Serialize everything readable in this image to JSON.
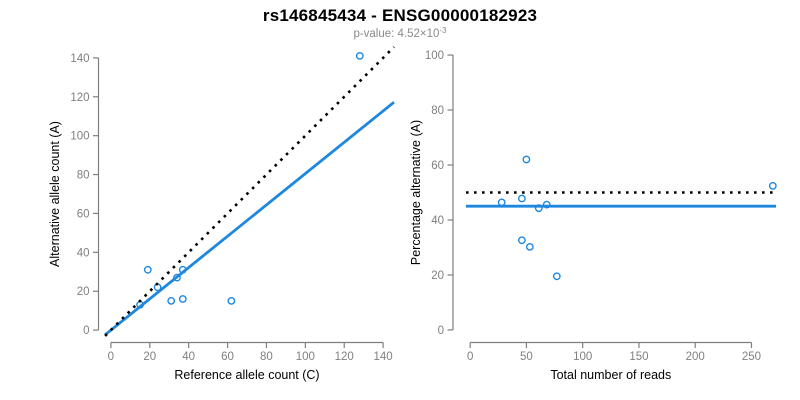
{
  "header": {
    "title": "rs146845434 - ENSG00000182923",
    "pvalue_text": "p-value: 4.52×10",
    "pvalue_exponent": "-3"
  },
  "colors": {
    "accent_blue": "#1E87E0",
    "identity_black": "#000000",
    "axis_gray": "#7F7F7F",
    "tick_label_gray": "#7F7F7F",
    "axis_title_black": "#000000"
  },
  "chart_data": [
    {
      "type": "scatter",
      "title": "",
      "xlabel": "Reference allele count (C)",
      "ylabel": "Alternative allele count (A)",
      "xlim": [
        0,
        140
      ],
      "ylim": [
        0,
        140
      ],
      "xticks": [
        0,
        20,
        40,
        60,
        80,
        100,
        120,
        140
      ],
      "yticks": [
        0,
        20,
        40,
        60,
        80,
        100,
        120,
        140
      ],
      "grid": false,
      "points": [
        [
          19,
          31
        ],
        [
          15,
          13
        ],
        [
          24,
          22
        ],
        [
          34,
          27
        ],
        [
          37,
          31
        ],
        [
          31,
          15
        ],
        [
          37,
          16
        ],
        [
          62,
          15
        ],
        [
          128,
          141
        ]
      ],
      "ablines": [
        {
          "name": "fit-line",
          "slope": 0.805,
          "intercept": 0,
          "style": "solid",
          "color_key": "accent_blue"
        },
        {
          "name": "identity-line",
          "slope": 1,
          "intercept": 0,
          "style": "dotted",
          "color_key": "identity_black"
        }
      ]
    },
    {
      "type": "scatter",
      "title": "",
      "xlabel": "Total number of reads",
      "ylabel": "Percentage alternative (A)",
      "xlim": [
        0,
        269
      ],
      "ylim": [
        0,
        100
      ],
      "xticks": [
        0,
        50,
        100,
        150,
        200,
        250
      ],
      "yticks": [
        0,
        20,
        40,
        60,
        80,
        100
      ],
      "grid": false,
      "points": [
        [
          50,
          62.0
        ],
        [
          28,
          46.4
        ],
        [
          46,
          47.8
        ],
        [
          61,
          44.3
        ],
        [
          68,
          45.6
        ],
        [
          46,
          32.6
        ],
        [
          53,
          30.2
        ],
        [
          77,
          19.5
        ],
        [
          269,
          52.4
        ]
      ],
      "hlines": [
        {
          "name": "fit-line",
          "y": 45,
          "style": "solid",
          "color_key": "accent_blue"
        },
        {
          "name": "expected-line",
          "y": 50,
          "style": "dotted",
          "color_key": "identity_black"
        }
      ]
    }
  ]
}
